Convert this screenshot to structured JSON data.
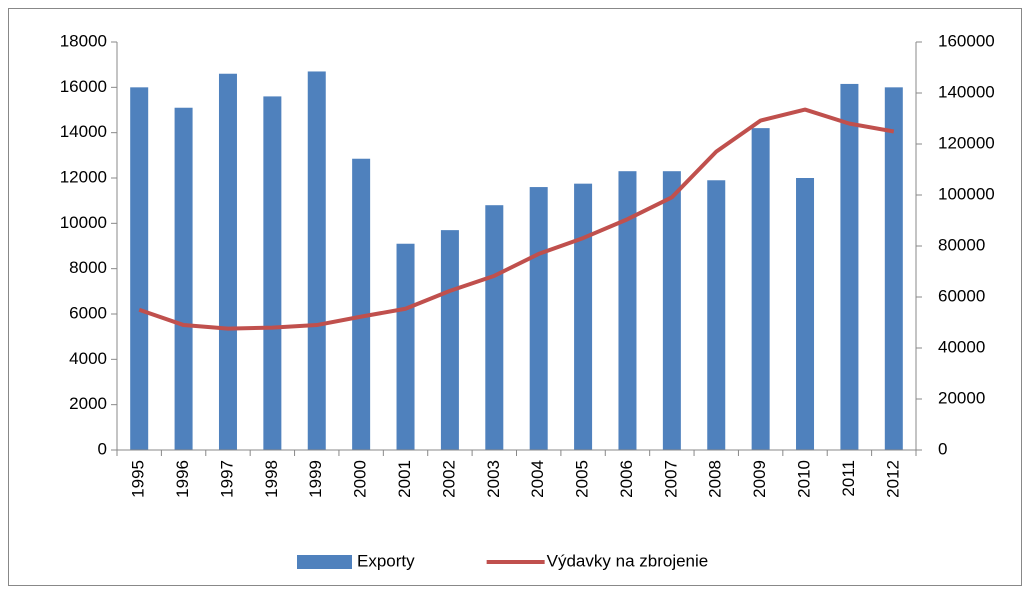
{
  "chart_data": {
    "type": "bar",
    "categories": [
      "1995",
      "1996",
      "1997",
      "1998",
      "1999",
      "2000",
      "2001",
      "2002",
      "2003",
      "2004",
      "2005",
      "2006",
      "2007",
      "2008",
      "2009",
      "2010",
      "2011",
      "2012"
    ],
    "series": [
      {
        "name": "Exporty",
        "color": "#4f81bd",
        "type": "bar",
        "axis": "y",
        "values": [
          16000,
          15100,
          16600,
          15600,
          16700,
          12850,
          9100,
          9700,
          10800,
          11600,
          11750,
          12300,
          12300,
          11900,
          14200,
          12000,
          16150,
          16000
        ]
      },
      {
        "name": "Výdavky na zbrojenie",
        "color": "#c0504d",
        "type": "line",
        "axis": "y2",
        "values": [
          55000,
          49000,
          47600,
          48000,
          49000,
          52300,
          55400,
          62400,
          68300,
          76900,
          83100,
          90500,
          99100,
          117000,
          129200,
          133500,
          128000,
          124900
        ]
      }
    ],
    "ylim": [
      0,
      18000
    ],
    "yticks": [
      0,
      2000,
      4000,
      6000,
      8000,
      10000,
      12000,
      14000,
      16000,
      18000
    ],
    "y2lim": [
      0,
      160000
    ],
    "y2ticks": [
      0,
      20000,
      40000,
      60000,
      80000,
      100000,
      120000,
      140000,
      160000
    ],
    "grid": false,
    "legend": "bottom"
  }
}
